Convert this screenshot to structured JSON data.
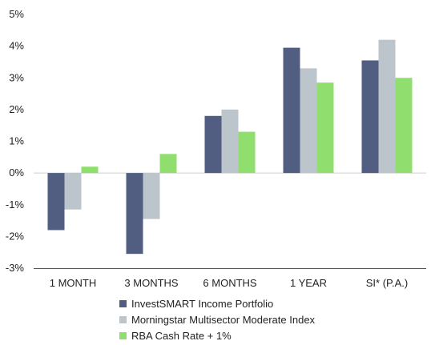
{
  "chart_data": {
    "type": "bar",
    "title": "",
    "xlabel": "",
    "ylabel": "",
    "ylim": [
      -3,
      5
    ],
    "yticks": [
      -3,
      -2,
      -1,
      0,
      1,
      2,
      3,
      4,
      5
    ],
    "ytick_labels": [
      "-3%",
      "-2%",
      "-1%",
      "0%",
      "1%",
      "2%",
      "3%",
      "4%",
      "5%"
    ],
    "categories": [
      "1 MONTH",
      "3 MONTHS",
      "6 MONTHS",
      "1 YEAR",
      "SI* (P.A.)"
    ],
    "series": [
      {
        "name": "InvestSMART Income Portfolio",
        "color": "#515e82",
        "values": [
          -1.8,
          -2.55,
          1.8,
          3.95,
          3.55
        ]
      },
      {
        "name": "Morningstar Multisector Moderate Index",
        "color": "#bcc4cc",
        "values": [
          -1.15,
          -1.45,
          2.0,
          3.3,
          4.2
        ]
      },
      {
        "name": "RBA Cash Rate + 1%",
        "color": "#90df6e",
        "values": [
          0.2,
          0.6,
          1.3,
          2.85,
          3.0
        ]
      }
    ],
    "grid": false,
    "legend_position": "bottom"
  }
}
